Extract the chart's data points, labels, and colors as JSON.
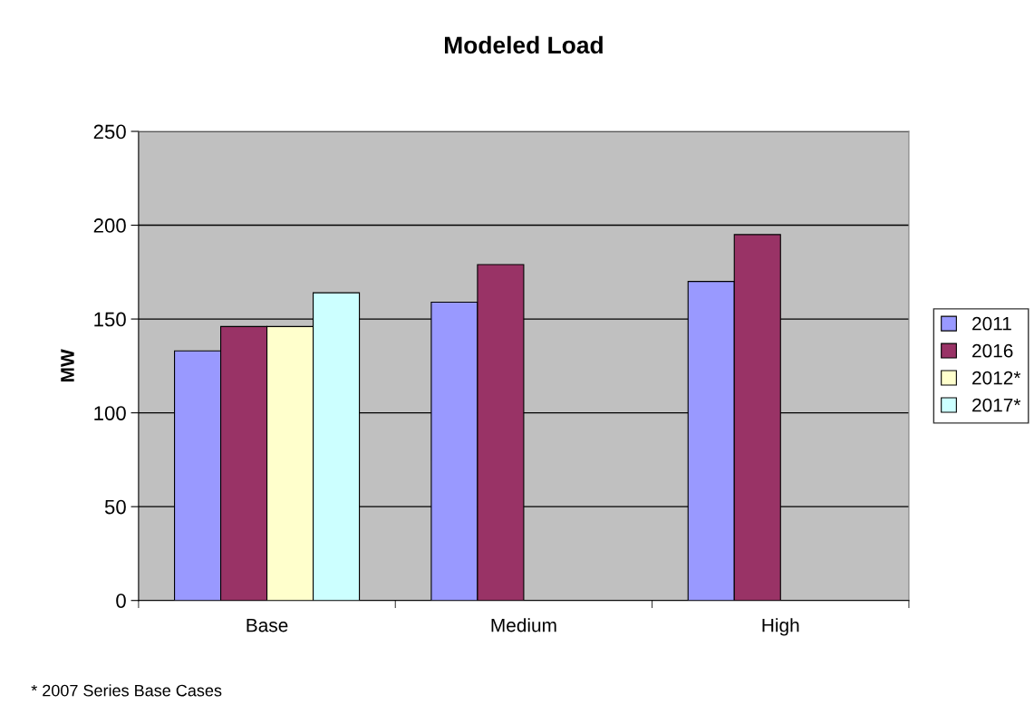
{
  "chart_data": {
    "type": "bar",
    "title": "Modeled Load",
    "ylabel": "MW",
    "categories": [
      "Base",
      "Medium",
      "High"
    ],
    "series": [
      {
        "name": "2011",
        "color": "#9999ff",
        "values": [
          133,
          159,
          170
        ]
      },
      {
        "name": "2016",
        "color": "#993366",
        "values": [
          146,
          179,
          195
        ]
      },
      {
        "name": "2012*",
        "color": "#ffffcc",
        "values": [
          146,
          null,
          null
        ]
      },
      {
        "name": "2017*",
        "color": "#ccffff",
        "values": [
          164,
          null,
          null
        ]
      }
    ],
    "ylim": [
      0,
      250
    ],
    "yticks": [
      0,
      50,
      100,
      150,
      200,
      250
    ],
    "grid": "y",
    "legend": "right",
    "annotations": [
      "* 2007 Series Base Cases"
    ]
  }
}
